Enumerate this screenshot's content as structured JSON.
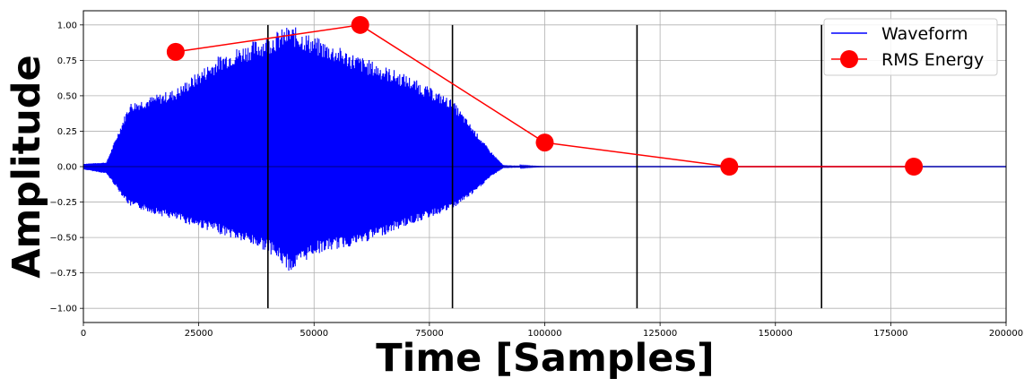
{
  "chart_data": {
    "type": "line",
    "title": "",
    "xlabel": "Time [Samples]",
    "ylabel": "Amplitude",
    "xlim": [
      0,
      200000
    ],
    "ylim": [
      -1.1,
      1.1
    ],
    "x_ticks": [
      0,
      25000,
      50000,
      75000,
      100000,
      125000,
      150000,
      175000,
      200000
    ],
    "x_tick_labels": [
      "0",
      "25000",
      "50000",
      "75000",
      "100000",
      "125000",
      "150000",
      "175000",
      "200000"
    ],
    "y_ticks": [
      1.0,
      0.75,
      0.5,
      0.25,
      0.0,
      -0.25,
      -0.5,
      -0.75,
      -1.0
    ],
    "y_tick_labels": [
      "1.00",
      "0.75",
      "0.50",
      "0.25",
      "0.00",
      "−0.25",
      "−0.50",
      "−0.75",
      "−1.00"
    ],
    "grid": true,
    "legend_position": "top-right",
    "series": [
      {
        "name": "Waveform",
        "kind": "waveform",
        "color": "#0000ff",
        "x": [
          0,
          5000,
          10000,
          20000,
          30000,
          40000,
          45000,
          50000,
          60000,
          70000,
          80000,
          85000,
          88000,
          91000,
          100000,
          200000
        ],
        "y_max": [
          0.02,
          0.03,
          0.45,
          0.55,
          0.8,
          0.93,
          1.0,
          0.92,
          0.78,
          0.65,
          0.47,
          0.25,
          0.12,
          0.01,
          0.0,
          0.0
        ],
        "y_min": [
          -0.02,
          -0.05,
          -0.28,
          -0.38,
          -0.48,
          -0.6,
          -0.75,
          -0.62,
          -0.55,
          -0.42,
          -0.3,
          -0.18,
          -0.08,
          -0.01,
          0.0,
          0.0
        ]
      },
      {
        "name": "RMS Energy",
        "kind": "line-markers",
        "color": "#ff0000",
        "x": [
          20000,
          60000,
          100000,
          140000,
          180000
        ],
        "y": [
          0.81,
          1.0,
          0.17,
          0.0,
          0.0
        ]
      }
    ],
    "frame_boundaries": [
      40000,
      80000,
      120000,
      160000
    ]
  }
}
